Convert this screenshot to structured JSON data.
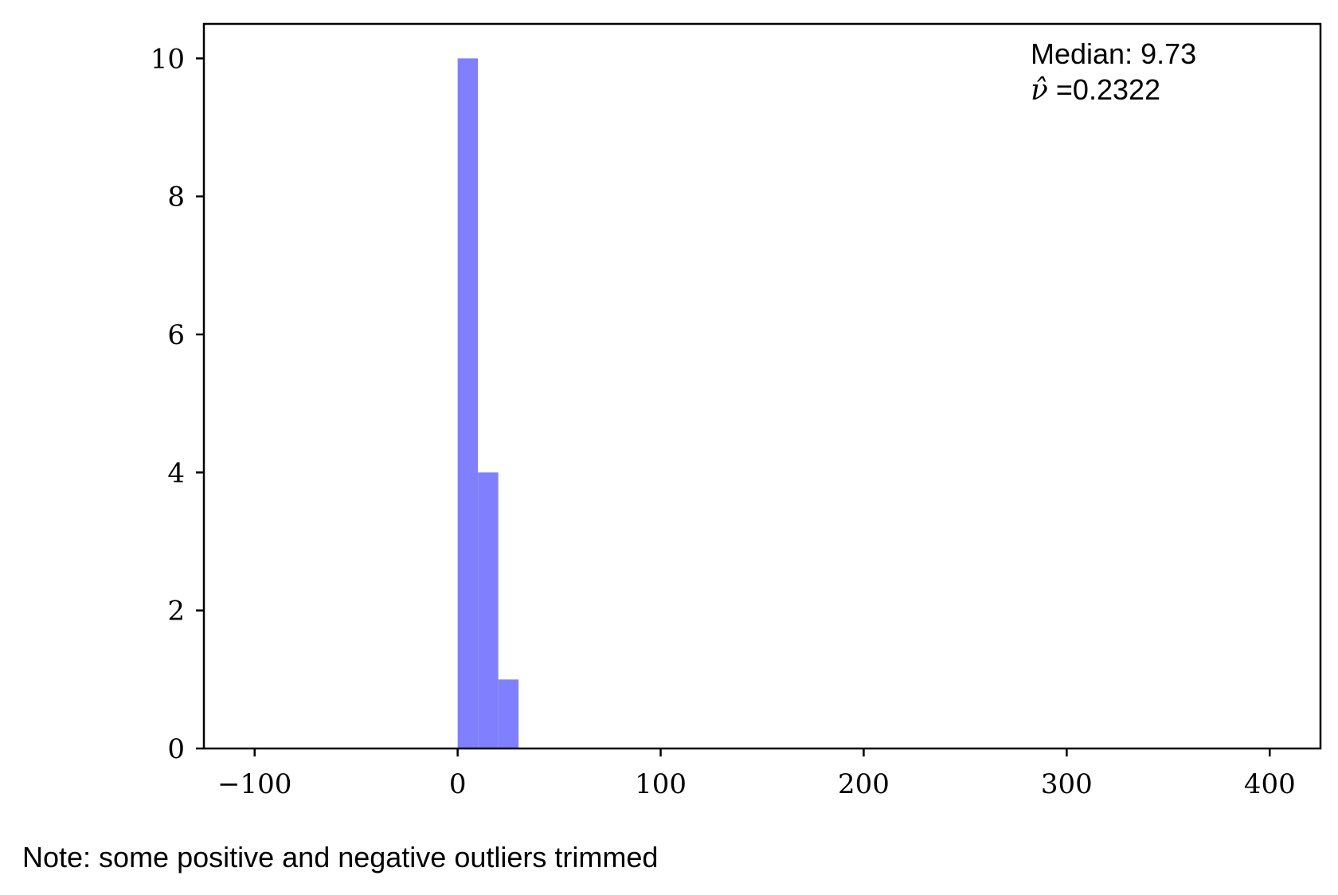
{
  "chart_data": {
    "type": "bar",
    "title": "",
    "xlabel": "",
    "ylabel": "",
    "xlim": [
      -125,
      425
    ],
    "ylim": [
      0,
      10.5
    ],
    "grid": false,
    "bar_color": "#8080ff",
    "bins": [
      {
        "x0": 0,
        "x1": 10,
        "count": 10
      },
      {
        "x0": 10,
        "x1": 20,
        "count": 4
      },
      {
        "x0": 20,
        "x1": 30,
        "count": 1
      }
    ],
    "x_ticks": [
      {
        "value": -100,
        "label": "−100"
      },
      {
        "value": 0,
        "label": "0"
      },
      {
        "value": 100,
        "label": "100"
      },
      {
        "value": 200,
        "label": "200"
      },
      {
        "value": 300,
        "label": "300"
      },
      {
        "value": 400,
        "label": "400"
      }
    ],
    "y_ticks": [
      {
        "value": 0,
        "label": "0"
      },
      {
        "value": 2,
        "label": "2"
      },
      {
        "value": 4,
        "label": "4"
      },
      {
        "value": 6,
        "label": "6"
      },
      {
        "value": 8,
        "label": "8"
      },
      {
        "value": 10,
        "label": "10"
      }
    ],
    "annotations": {
      "median": "Median: 9.73",
      "nu_symbol": "ν̂",
      "nu_value": " =0.2322"
    },
    "note": "Note: some positive and negative outliers trimmed"
  }
}
